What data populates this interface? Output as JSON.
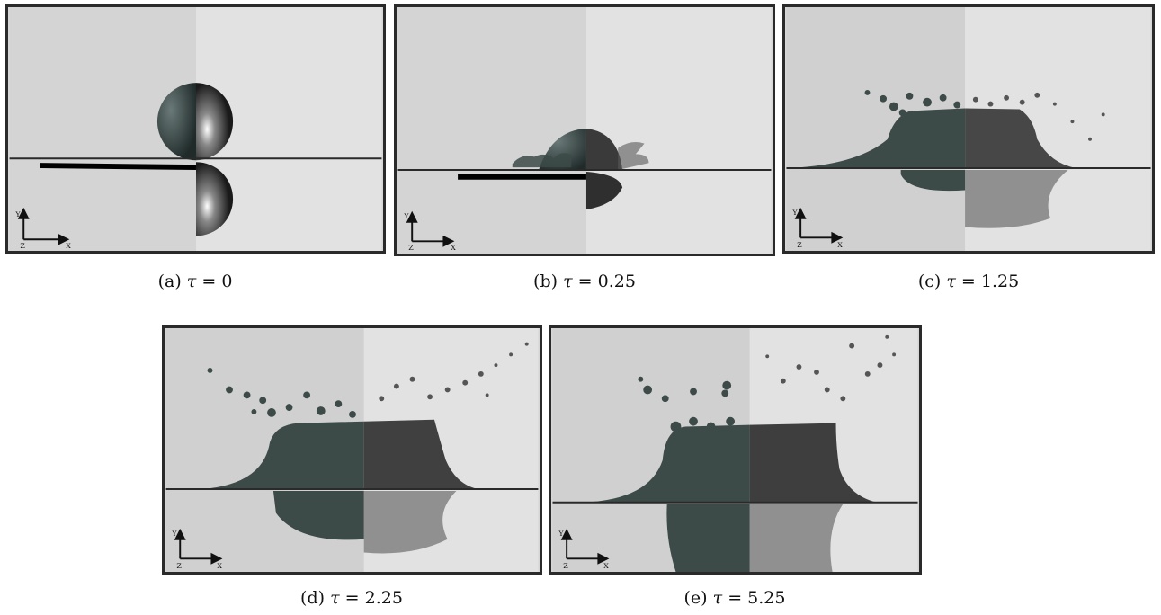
{
  "figure": {
    "panels": [
      {
        "label": "(a)",
        "tau_symbol": "τ",
        "eq": "=",
        "value": "0"
      },
      {
        "label": "(b)",
        "tau_symbol": "τ",
        "eq": "=",
        "value": "0.25"
      },
      {
        "label": "(c)",
        "tau_symbol": "τ",
        "eq": "=",
        "value": "1.25"
      },
      {
        "label": "(d)",
        "tau_symbol": "τ",
        "eq": "=",
        "value": "2.25"
      },
      {
        "label": "(e)",
        "tau_symbol": "τ",
        "eq": "=",
        "value": "5.25"
      }
    ],
    "axes_labels": {
      "y": "Y",
      "x": "X",
      "z": "Z"
    },
    "colors": {
      "frame": "#2a2a2a",
      "sim_background": "#d4d4d4",
      "exp_background": "#e2e2e2",
      "liquid_sim": "#3c4a48",
      "liquid_exp": "#5a5a5a"
    }
  }
}
